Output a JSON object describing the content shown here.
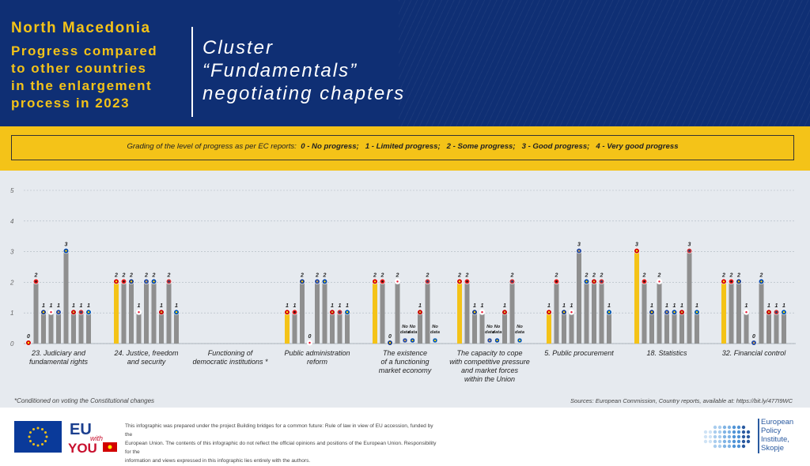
{
  "header": {
    "country": "North Macedonia",
    "subtitle_lines": [
      "Progress compared",
      "to other countries",
      "in the enlargement",
      "process in 2023"
    ],
    "right_title_lines": [
      "Cluster",
      "“Fundamentals”",
      "negotiating chapters"
    ]
  },
  "legend": {
    "prefix": "Grading of the level of progress as per EC reports:",
    "items": [
      "0 - No progress;",
      "1 - Limited progress;",
      "2 - Some progress;",
      "3 - Good progress;",
      "4 - Very good progress"
    ]
  },
  "footnote": "*Conditioned on voting the Constitutional changes",
  "sources": "Sources: European Commission, Country reports, available at: https://bit.ly/477I9WC",
  "footer": {
    "disclaimer_lines": [
      "This infographic was prepared under the project Building bridges for a common future: Rule of law in view of EU accession, funded by the",
      "European Union. The contents of this infographic do not reflect the official opinions and positions of the European Union. Responsibility for the",
      "information and views expressed in this infographic lies entirely with the authors."
    ],
    "logo_eu_with_you": [
      "EU",
      "with",
      "YOU"
    ],
    "institute_lines": [
      "European",
      "Policy",
      "Institute,",
      "Skopje"
    ]
  },
  "colors": {
    "highlight": "#f4c318",
    "bar": "#8f8f8f",
    "header_bg": "#0f2f74",
    "chart_bg": "#e6eaef"
  },
  "chart_data": {
    "type": "bar",
    "ylim": [
      0,
      5
    ],
    "yticks": [
      "0",
      "1",
      "2",
      "3",
      "4",
      "5"
    ],
    "grid": true,
    "no_data_label": [
      "No",
      "data"
    ],
    "country_order_per_group": [
      "North Macedonia",
      "Albania",
      "Bosnia and Herzegovina",
      "Georgia",
      "Kosovo",
      "Moldova",
      "Montenegro",
      "Serbia",
      "Ukraine"
    ],
    "categories": [
      {
        "label": [
          "23. Judiciary and",
          "fundamental rights"
        ],
        "values": [
          0,
          2,
          1,
          1,
          1,
          3,
          1,
          1,
          1
        ]
      },
      {
        "label": [
          "24. Justice, freedom",
          "and security"
        ],
        "values": [
          2,
          2,
          2,
          1,
          2,
          2,
          1,
          2,
          1
        ]
      },
      {
        "label": [
          "Functioning of",
          "democratic institutions *"
        ],
        "values": [
          null,
          null,
          null,
          null,
          null,
          null,
          null,
          null,
          null
        ]
      },
      {
        "label": [
          "Public administration",
          "reform"
        ],
        "values": [
          1,
          1,
          2,
          0,
          2,
          2,
          1,
          1,
          1
        ]
      },
      {
        "label": [
          "The existence",
          "of a functioning",
          "market economy"
        ],
        "values": [
          2,
          2,
          0,
          2,
          "No data",
          "No data",
          1,
          2,
          "No data"
        ]
      },
      {
        "label": [
          "The capacity to cope",
          "with competitive pressure",
          "and market forces",
          "within the Union"
        ],
        "values": [
          2,
          2,
          1,
          1,
          "No data",
          "No data",
          1,
          2,
          "No data"
        ]
      },
      {
        "label": [
          "5. Public procurement"
        ],
        "values": [
          1,
          2,
          1,
          1,
          3,
          2,
          2,
          2,
          1
        ]
      },
      {
        "label": [
          "18. Statistics"
        ],
        "values": [
          3,
          2,
          1,
          2,
          1,
          1,
          1,
          3,
          1
        ]
      },
      {
        "label": [
          "32. Financial control"
        ],
        "values": [
          2,
          2,
          2,
          1,
          0,
          2,
          1,
          1,
          1
        ]
      }
    ]
  }
}
